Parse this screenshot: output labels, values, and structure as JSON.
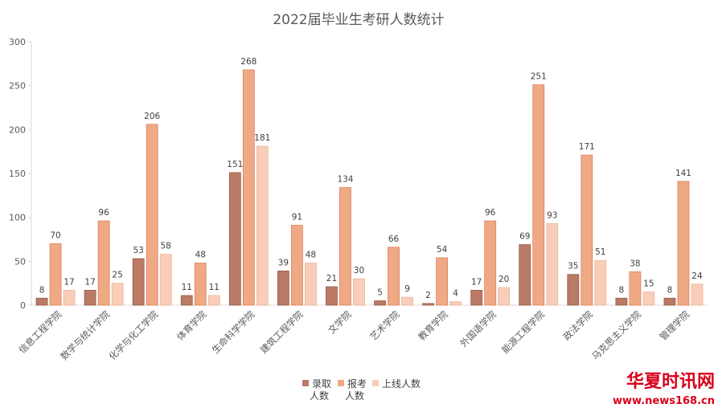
{
  "chart_data": {
    "type": "bar",
    "title": "2022届毕业生考研人数统计",
    "categories": [
      "信息工程学院",
      "数学与统计学院",
      "化学与化工学院",
      "体育学院",
      "生命科学学院",
      "建筑工程学院",
      "文学院",
      "艺术学院",
      "教育学院",
      "外国语学院",
      "能源工程学院",
      "政法学院",
      "马克思主义学院",
      "管理学院"
    ],
    "series": [
      {
        "name": "录取人数",
        "color": "#b97a66",
        "values": [
          8,
          17,
          53,
          11,
          151,
          39,
          21,
          5,
          2,
          17,
          69,
          35,
          8,
          8
        ]
      },
      {
        "name": "报考人数",
        "color": "#f0a985",
        "values": [
          70,
          96,
          206,
          48,
          268,
          91,
          134,
          66,
          54,
          96,
          251,
          171,
          38,
          141
        ]
      },
      {
        "name": "上线人数",
        "color": "#f8cdb9",
        "values": [
          17,
          25,
          58,
          11,
          181,
          48,
          30,
          9,
          4,
          20,
          93,
          51,
          15,
          24
        ]
      }
    ],
    "ylim": [
      0,
      300
    ],
    "yticks": [
      0,
      50,
      100,
      150,
      200,
      250,
      300
    ],
    "grid": false,
    "legend_position": "bottom",
    "legend_lines": [
      [
        "录取",
        "人数"
      ],
      [
        "报考",
        "人数"
      ],
      [
        "上线人数"
      ]
    ]
  },
  "watermark": {
    "brand": "华夏时讯网",
    "url": "www.news168.cn"
  }
}
